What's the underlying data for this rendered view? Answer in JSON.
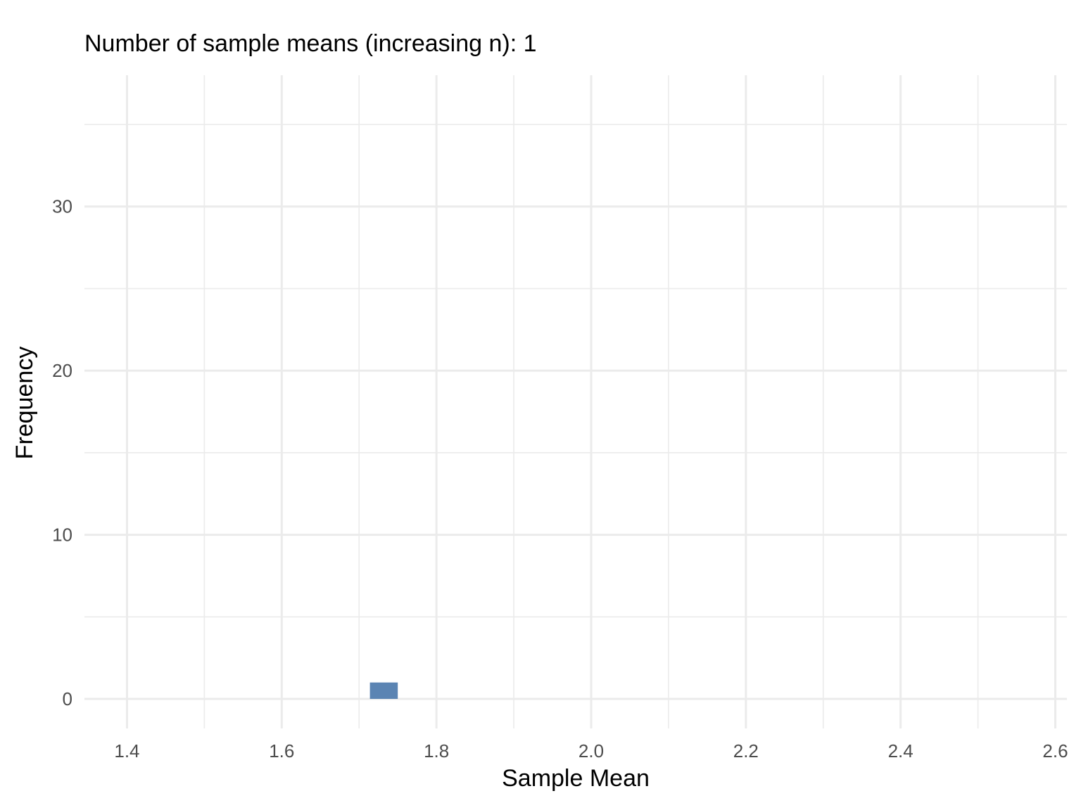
{
  "chart_data": {
    "type": "bar",
    "title": "Number of sample means (increasing n): 1",
    "xlabel": "Sample Mean",
    "ylabel": "Frequency",
    "xlim": [
      1.345,
      2.615
    ],
    "ylim": [
      -1.8,
      38
    ],
    "x_ticks": [
      "1.4",
      "1.6",
      "1.8",
      "2.0",
      "2.2",
      "2.4",
      "2.6"
    ],
    "y_ticks": [
      "0",
      "10",
      "20",
      "30"
    ],
    "x_minor_breaks": [
      1.5,
      1.7,
      1.9,
      2.1,
      2.3,
      2.5
    ],
    "y_minor_breaks": [
      5,
      15,
      25,
      35
    ],
    "grid": true,
    "bar_color": "#5b84b3",
    "bars": [
      {
        "x_start": 1.714,
        "x_end": 1.75,
        "count": 1
      }
    ]
  }
}
